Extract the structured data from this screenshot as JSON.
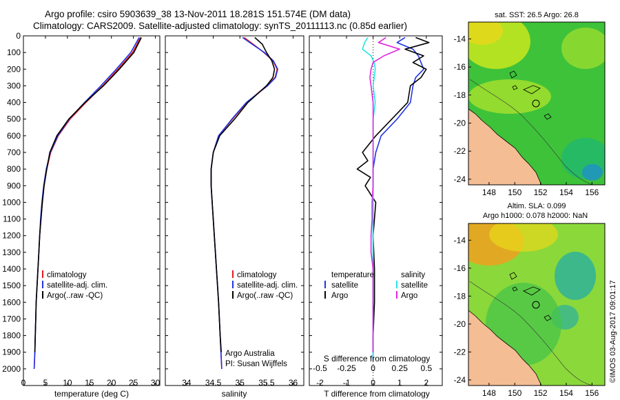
{
  "header": {
    "line1": "Argo profile: csiro 5903639_38 13-Nov-2011 18.281S 151.574E (DM data)",
    "line2": "Climatology: CARS2009. Satellite-adjusted climatology: synTS_20111113.nc (0.85d earlier)"
  },
  "colors": {
    "climatology": "#e41a1c",
    "satellite": "#1f33e6",
    "argo": "#000000",
    "sal_satellite": "#22e5e5",
    "sal_argo": "#e026e0",
    "land": "#f4bd94"
  },
  "credit": {
    "org": "Argo Australia",
    "pi": "PI: Susan Wijffels",
    "stamp": "©IMOS 03-Aug-2017 09:01:17"
  },
  "chart_data": [
    {
      "type": "line",
      "id": "temperature",
      "xlabel": "temperature (deg C)",
      "ylabel": "",
      "xlim": [
        0,
        31
      ],
      "ylim": [
        0,
        2100
      ],
      "x_ticks": [
        0,
        5,
        10,
        15,
        20,
        25,
        30
      ],
      "x_tick_labels": [
        "0",
        "5",
        "10",
        "15",
        "20",
        "25",
        "30"
      ],
      "y_ticks": [
        0,
        100,
        200,
        300,
        400,
        500,
        600,
        700,
        800,
        900,
        1000,
        1100,
        1200,
        1300,
        1400,
        1500,
        1600,
        1700,
        1800,
        1900,
        2000
      ],
      "y_tick_labels": [
        "0",
        "100",
        "200",
        "300",
        "400",
        "500",
        "600",
        "700",
        "800",
        "900",
        "1000",
        "1100",
        "1200",
        "1300",
        "1400",
        "1500",
        "1600",
        "1700",
        "1800",
        "1900",
        "2000"
      ],
      "legend": [
        "climatology",
        "satellite-adj. clim.",
        "Argo(..raw -QC)"
      ],
      "series": [
        {
          "name": "climatology",
          "depth": [
            10,
            100,
            200,
            300,
            400,
            500,
            600,
            700,
            800,
            900,
            1000,
            1100,
            1200,
            1300,
            1400,
            1500,
            1600,
            1700,
            1800,
            1900,
            2000
          ],
          "values": [
            26.6,
            24.8,
            21.5,
            18.0,
            14.2,
            10.6,
            7.9,
            6.2,
            5.3,
            4.7,
            4.3,
            4.0,
            3.7,
            3.5,
            3.3,
            3.1,
            2.9,
            2.8,
            2.7,
            2.6,
            2.45
          ]
        },
        {
          "name": "satellite-adj. clim.",
          "depth": [
            10,
            100,
            200,
            300,
            400,
            500,
            600,
            700,
            800,
            900,
            1000,
            1100,
            1200,
            1300,
            1400,
            1500,
            1600,
            1700,
            1800,
            1900,
            2000
          ],
          "values": [
            26.3,
            24.4,
            21.1,
            17.6,
            13.9,
            10.4,
            7.8,
            6.1,
            5.2,
            4.6,
            4.2,
            3.9,
            3.7,
            3.5,
            3.3,
            3.1,
            2.9,
            2.8,
            2.7,
            2.6,
            2.45
          ]
        },
        {
          "name": "Argo(..raw -QC)",
          "depth": [
            10,
            100,
            200,
            300,
            400,
            500,
            600,
            700,
            800,
            900,
            1000,
            1100,
            1200,
            1300,
            1400,
            1500,
            1600,
            1700,
            1800,
            1900
          ],
          "values": [
            26.8,
            25.1,
            21.8,
            18.2,
            14.0,
            10.3,
            7.6,
            6.0,
            5.3,
            4.7,
            4.3,
            4.0,
            3.7,
            3.5,
            3.3,
            3.1,
            2.9,
            2.8,
            2.7,
            2.6
          ]
        }
      ]
    },
    {
      "type": "line",
      "id": "salinity",
      "xlabel": "salinity",
      "xlim": [
        33.6,
        36.2
      ],
      "ylim": [
        0,
        2100
      ],
      "x_ticks": [
        34,
        34.5,
        35,
        35.5,
        36
      ],
      "x_tick_labels": [
        "34",
        "34.5",
        "35",
        "35.5",
        "36"
      ],
      "legend": [
        "climatology",
        "satellite-adj. clim.",
        "Argo(..raw -QC)"
      ],
      "series": [
        {
          "name": "climatology",
          "depth": [
            10,
            50,
            100,
            150,
            200,
            250,
            300,
            400,
            500,
            600,
            700,
            800,
            900,
            1000,
            1200,
            1400,
            1600,
            1800,
            2000
          ],
          "values": [
            35.08,
            35.25,
            35.45,
            35.62,
            35.7,
            35.66,
            35.5,
            35.13,
            34.86,
            34.6,
            34.5,
            34.46,
            34.46,
            34.48,
            34.52,
            34.56,
            34.6,
            34.63,
            34.66
          ]
        },
        {
          "name": "satellite-adj. clim.",
          "depth": [
            10,
            50,
            100,
            150,
            200,
            250,
            300,
            400,
            500,
            600,
            700,
            800,
            900,
            1000,
            1200,
            1400,
            1600,
            1800,
            2000
          ],
          "values": [
            35.05,
            35.23,
            35.46,
            35.63,
            35.71,
            35.67,
            35.52,
            35.12,
            34.85,
            34.6,
            34.5,
            34.46,
            34.46,
            34.48,
            34.52,
            34.56,
            34.6,
            34.63,
            34.66
          ]
        },
        {
          "name": "Argo(..raw -QC)",
          "depth": [
            10,
            50,
            100,
            150,
            200,
            250,
            300,
            400,
            500,
            600,
            700,
            800,
            900,
            1000,
            1200,
            1400,
            1600,
            1800,
            1900
          ],
          "values": [
            35.28,
            35.42,
            35.5,
            35.6,
            35.65,
            35.62,
            35.5,
            35.15,
            34.9,
            34.62,
            34.5,
            34.46,
            34.46,
            34.48,
            34.52,
            34.56,
            34.6,
            34.63,
            34.65
          ]
        }
      ]
    },
    {
      "type": "line",
      "id": "difference",
      "xlabel": "T difference from climatology",
      "xlabel_top": "S difference from climatology",
      "xlim": [
        -2.4,
        2.6
      ],
      "ylim": [
        0,
        2100
      ],
      "x_ticks": [
        -2,
        -1,
        0,
        1,
        2
      ],
      "x_tick_labels": [
        "-2",
        "-1",
        "0",
        "1",
        "2"
      ],
      "s_ticks": [
        -0.5,
        -0.25,
        0,
        0.25,
        0.5
      ],
      "s_tick_labels": [
        "-0.5",
        "-0.25",
        "0",
        "0.25",
        "0.5"
      ],
      "legend_temperature_title": "temperature",
      "legend_salinity_title": "salinity",
      "legend_temperature": [
        "satellite",
        "Argo"
      ],
      "legend_salinity": [
        "satellite",
        "Argo"
      ],
      "series": [
        {
          "name": "T satellite",
          "depth": [
            10,
            40,
            80,
            120,
            160,
            200,
            250,
            300,
            400,
            500,
            600,
            700,
            800,
            900,
            1000,
            1200,
            1400,
            1600,
            1800,
            1950
          ],
          "values": [
            1.2,
            0.9,
            1.5,
            1.7,
            1.8,
            1.9,
            1.6,
            1.5,
            1.4,
            0.9,
            0.3,
            0.1,
            0.0,
            0.0,
            0.0,
            0.0,
            0.0,
            0.0,
            0.0,
            0.0
          ]
        },
        {
          "name": "T Argo",
          "depth": [
            10,
            40,
            80,
            120,
            160,
            200,
            250,
            300,
            400,
            500,
            600,
            700,
            750,
            800,
            850,
            900,
            1000,
            1200,
            1400,
            1600,
            1800,
            1900
          ],
          "values": [
            1.6,
            2.1,
            1.2,
            1.9,
            1.5,
            2.0,
            1.8,
            1.4,
            1.3,
            0.7,
            0.1,
            -0.4,
            -0.2,
            -0.6,
            -0.1,
            -0.3,
            0.1,
            0.0,
            0.05,
            0.05,
            0.0,
            0.0
          ]
        },
        {
          "name": "S satellite",
          "depth": [
            10,
            40,
            80,
            120,
            160,
            200,
            300,
            400,
            500,
            600,
            700,
            800,
            900,
            1000,
            1200,
            1400,
            1600,
            1800,
            1950
          ],
          "values": [
            -0.05,
            -0.08,
            -0.1,
            -0.02,
            0.01,
            0.02,
            0.0,
            0.02,
            0.0,
            0.0,
            0.0,
            0.0,
            0.0,
            0.0,
            0.0,
            0.0,
            0.0,
            0.0,
            0.0
          ]
        },
        {
          "name": "S Argo",
          "depth": [
            10,
            40,
            80,
            120,
            160,
            200,
            250,
            300,
            400,
            500,
            600,
            700,
            800,
            900,
            1000,
            1100,
            1200,
            1300,
            1400,
            1600,
            1800,
            1900
          ],
          "values": [
            0.12,
            0.05,
            0.25,
            0.1,
            0.0,
            -0.02,
            -0.03,
            -0.02,
            0.0,
            0.0,
            0.0,
            0.0,
            0.0,
            0.0,
            -0.01,
            -0.01,
            -0.02,
            -0.02,
            0.0,
            0.0,
            0.0,
            0.0
          ]
        }
      ]
    },
    {
      "type": "heatmap",
      "id": "sst_map",
      "title": "sat. SST: 26.5 Argo: 26.8",
      "x_ticks": [
        148,
        150,
        152,
        154,
        156
      ],
      "x_tick_labels": [
        "148",
        "150",
        "152",
        "154",
        "156"
      ],
      "y_ticks": [
        -14,
        -16,
        -18,
        -20,
        -22,
        -24
      ],
      "y_tick_labels": [
        "-14",
        "-16",
        "-18",
        "-20",
        "-22",
        "-24"
      ],
      "xlim": [
        146.4,
        157
      ],
      "ylim": [
        -24.4,
        -12.8
      ],
      "profile_location": [
        151.574,
        -18.281
      ]
    },
    {
      "type": "heatmap",
      "id": "sla_map",
      "title": "Altim. SLA: 0.099",
      "subtitle": "Argo h1000: 0.078 h2000: NaN",
      "x_ticks": [
        148,
        150,
        152,
        154,
        156
      ],
      "x_tick_labels": [
        "148",
        "150",
        "152",
        "154",
        "156"
      ],
      "y_ticks": [
        -14,
        -16,
        -18,
        -20,
        -22,
        -24
      ],
      "y_tick_labels": [
        "-14",
        "-16",
        "-18",
        "-20",
        "-22",
        "-24"
      ],
      "xlim": [
        146.4,
        157
      ],
      "ylim": [
        -24.4,
        -12.8
      ],
      "profile_location": [
        151.574,
        -18.281
      ]
    }
  ]
}
